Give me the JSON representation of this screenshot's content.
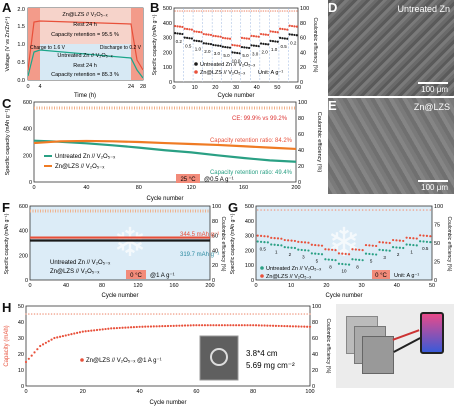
{
  "panels": {
    "A": {
      "letter": "A"
    },
    "B": {
      "letter": "B"
    },
    "C": {
      "letter": "C"
    },
    "D": {
      "letter": "D",
      "title": "Untreated Zn",
      "scale": "100 μm"
    },
    "E": {
      "letter": "E",
      "title": "Zn@LZS",
      "scale": "100 μm"
    },
    "F": {
      "letter": "F"
    },
    "G": {
      "letter": "G"
    },
    "H": {
      "letter": "H"
    }
  },
  "chart_data": [
    {
      "id": "A",
      "type": "line",
      "xlabel": "Time (h)",
      "ylabel": "Voltage (V vs Zn/Zn²⁺)",
      "xticks": [
        "0",
        "4",
        "24",
        "28"
      ],
      "yticks": [
        "0.0",
        "0.5",
        "1.0",
        "1.5",
        "2.0"
      ],
      "annotations": [
        "Zn@LZS // V₂O₅₋ₓ",
        "Rest 24 h",
        "Capacity retention = 95.5 %",
        "Charge to 1.6 V",
        "Discharge to 0.2 V",
        "Untreated Zn // V₂O₅₋ₓ",
        "Rest 24 h",
        "Capacity retention = 85.3 %"
      ]
    },
    {
      "id": "B",
      "type": "scatter",
      "xlabel": "Cycle number",
      "ylabel": "Specific capacity (mAh g⁻¹)",
      "y2label": "Coulombic efficiency (%)",
      "xlim": [
        0,
        60
      ],
      "ylim": [
        0,
        500
      ],
      "y2lim": [
        0,
        100
      ],
      "xticks": [
        "0",
        "10",
        "20",
        "30",
        "40",
        "50",
        "60"
      ],
      "yticks": [
        "0",
        "100",
        "200",
        "300",
        "400",
        "500"
      ],
      "y2ticks": [
        "0",
        "20",
        "40",
        "60",
        "80",
        "100"
      ],
      "rate_labels": [
        "0.2",
        "0.5",
        "1.0",
        "2.0",
        "3.0",
        "5.0",
        "10.0",
        "5.0",
        "3.0",
        "2.0",
        "1.0",
        "0.5",
        "0.2"
      ],
      "unit": "Unit: A g⁻¹",
      "series": [
        {
          "name": "Untreated Zn // V₂O₅₋ₓ",
          "color": "#1a1a1a",
          "values": [
            330,
            300,
            280,
            262,
            250,
            238,
            200,
            236,
            248,
            260,
            278,
            298,
            322
          ]
        },
        {
          "name": "Zn@LZS // V₂O₅₋ₓ",
          "color": "#e8503a",
          "values": [
            378,
            360,
            342,
            324,
            312,
            298,
            250,
            298,
            312,
            324,
            342,
            360,
            380
          ]
        }
      ]
    },
    {
      "id": "C",
      "type": "line",
      "xlabel": "Cycle number",
      "ylabel": "Specific capacity (mAh g⁻¹)",
      "y2label": "Coulombic efficiency (%)",
      "xlim": [
        0,
        200
      ],
      "ylim": [
        0,
        600
      ],
      "y2lim": [
        0,
        100
      ],
      "xticks": [
        "0",
        "40",
        "80",
        "120",
        "160",
        "200"
      ],
      "yticks": [
        "0",
        "200",
        "400",
        "600"
      ],
      "y2ticks": [
        "0",
        "20",
        "40",
        "60",
        "80",
        "100"
      ],
      "annotations": [
        "CE: 99.9% vs 99.2%",
        "Capacity retention ratio: 84.2%",
        "Capacity retention ratio: 49.4%",
        "25 °C",
        "@0.5 A g⁻¹"
      ],
      "series": [
        {
          "name": "Untreated Zn // V₂O₅₋ₓ",
          "color": "#2aa084",
          "x": [
            0,
            20,
            40,
            60,
            80,
            100,
            120,
            140,
            160,
            180,
            200
          ],
          "values": [
            310,
            302,
            290,
            275,
            258,
            238,
            222,
            200,
            180,
            162,
            152
          ]
        },
        {
          "name": "Zn@LZS // V₂O₅₋ₓ",
          "color": "#ef7b24",
          "x": [
            0,
            20,
            40,
            60,
            80,
            100,
            120,
            140,
            160,
            180,
            200
          ],
          "values": [
            292,
            305,
            308,
            305,
            300,
            292,
            285,
            278,
            268,
            258,
            248
          ]
        }
      ]
    },
    {
      "id": "F",
      "type": "line",
      "xlabel": "Cycle number",
      "ylabel": "Specific capacity (mAh g⁻¹)",
      "y2label": "Coulombic efficiency (%)",
      "xlim": [
        0,
        200
      ],
      "ylim": [
        0,
        600
      ],
      "y2lim": [
        0,
        100
      ],
      "xticks": [
        "0",
        "40",
        "80",
        "120",
        "160",
        "200"
      ],
      "yticks": [
        "0",
        "200",
        "400",
        "600"
      ],
      "y2ticks": [
        "0",
        "20",
        "40",
        "60",
        "80",
        "100"
      ],
      "annotations": [
        "344.5 mAh g⁻¹",
        "319.7 mAh g⁻¹",
        "0 °C",
        "@1 A g⁻¹"
      ],
      "series": [
        {
          "name": "Untreated Zn // V₂O₅₋ₓ",
          "color": "#1a1a1a",
          "x": [
            0,
            200
          ],
          "values": [
            320,
            320
          ]
        },
        {
          "name": "Zn@LZS // V₂O₅₋ₓ",
          "color": "#e8503a",
          "x": [
            0,
            200
          ],
          "values": [
            344,
            344
          ]
        }
      ]
    },
    {
      "id": "G",
      "type": "scatter",
      "xlabel": "Cycle number",
      "ylabel": "Specific capacity (mAh g⁻¹)",
      "y2label": "Coulombic efficiency (%)",
      "xlim": [
        0,
        55
      ],
      "ylim": [
        0,
        500
      ],
      "y2lim": [
        0,
        100
      ],
      "xticks": [
        "0",
        "10",
        "20",
        "30",
        "40",
        "50"
      ],
      "yticks": [
        "0",
        "100",
        "200",
        "300",
        "400",
        "500"
      ],
      "y2ticks": [
        "0",
        "25",
        "50",
        "75",
        "100"
      ],
      "rate_labels": [
        "0.5",
        "1",
        "2",
        "3",
        "5",
        "8",
        "10",
        "8",
        "5",
        "3",
        "2",
        "1",
        "0.5"
      ],
      "unit": "Unit: A g⁻¹",
      "temp": "0 °C",
      "series": [
        {
          "name": "Untreated Zn // V₂O₅₋ₓ",
          "color": "#2aa084",
          "values": [
            260,
            240,
            222,
            205,
            180,
            140,
            110,
            140,
            178,
            204,
            222,
            240,
            262
          ]
        },
        {
          "name": "Zn@LZS // V₂O₅₋ₓ",
          "color": "#e8503a",
          "values": [
            300,
            285,
            270,
            258,
            238,
            208,
            180,
            208,
            236,
            256,
            270,
            286,
            302
          ]
        }
      ]
    },
    {
      "id": "H",
      "type": "scatter",
      "xlabel": "Cycle number",
      "ylabel": "Capacity (mAh)",
      "y2label": "Coulombic efficiency (%)",
      "xlim": [
        0,
        100
      ],
      "ylim": [
        0,
        50
      ],
      "y2lim": [
        0,
        100
      ],
      "xticks": [
        "0",
        "20",
        "40",
        "60",
        "80",
        "100"
      ],
      "yticks": [
        "0",
        "10",
        "20",
        "30",
        "40",
        "50"
      ],
      "y2ticks": [
        "0",
        "20",
        "40",
        "60",
        "80",
        "100"
      ],
      "annotations": [
        "3.8*4 cm",
        "5.69 mg cm⁻²"
      ],
      "series": [
        {
          "name": "Zn@LZS // V₂O₅₋ₓ @1 A g⁻¹",
          "color": "#e8503a",
          "x": [
            0,
            5,
            10,
            20,
            30,
            40,
            50,
            60,
            70,
            80,
            90,
            100
          ],
          "values": [
            15,
            25,
            30,
            34,
            36,
            37,
            37.5,
            38,
            38,
            38,
            37.5,
            37
          ]
        }
      ]
    }
  ]
}
